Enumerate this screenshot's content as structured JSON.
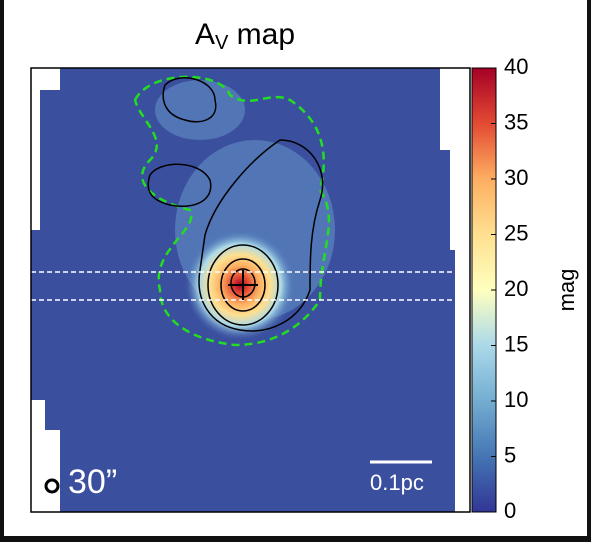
{
  "chart_data": {
    "type": "heatmap",
    "title_parts": [
      "A",
      "V",
      " map"
    ],
    "colorbar": {
      "label": "mag",
      "lim": [
        0,
        40
      ],
      "ticks": [
        0,
        5,
        10,
        15,
        20,
        25,
        30,
        35,
        40
      ],
      "colors": [
        "#313695",
        "#4575b4",
        "#74add1",
        "#abd9e9",
        "#ffffbf",
        "#fee090",
        "#fdae61",
        "#e34a33",
        "#a50026"
      ]
    },
    "annotations": {
      "beam": "30”",
      "scale_bar": "0.1pc"
    }
  }
}
